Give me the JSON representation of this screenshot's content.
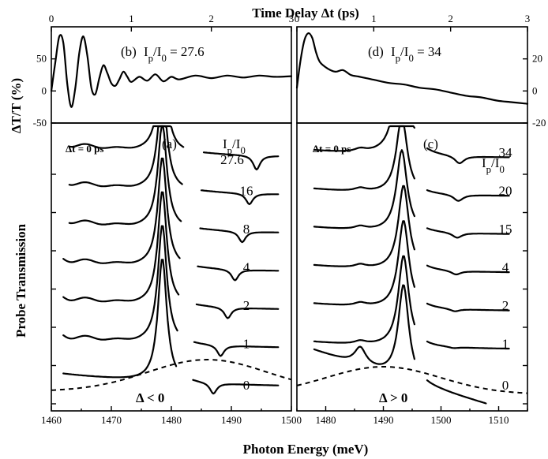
{
  "chart_data": [
    {
      "id": "b",
      "type": "line",
      "panel_label": "(b)",
      "annotation": "I_p/I_0 = 27.6",
      "xlabel": "Time Delay Δt (ps)",
      "ylabel": "ΔT/T (%)",
      "xlim": [
        0,
        3
      ],
      "ylim": [
        -50,
        100
      ],
      "xticks": [
        0,
        1,
        2,
        3
      ],
      "yticks": [
        -50,
        0,
        50
      ],
      "series": [
        {
          "x": [
            0.0,
            0.05,
            0.1,
            0.15,
            0.2,
            0.25,
            0.3,
            0.35,
            0.4,
            0.45,
            0.5,
            0.55,
            0.6,
            0.65,
            0.7,
            0.75,
            0.8,
            0.85,
            0.9,
            0.95,
            1.0,
            1.1,
            1.2,
            1.3,
            1.4,
            1.5,
            1.6,
            1.8,
            2.0,
            2.2,
            2.4,
            2.6,
            2.8,
            3.0
          ],
          "y": [
            0,
            45,
            85,
            75,
            10,
            -25,
            5,
            60,
            85,
            55,
            5,
            -5,
            20,
            40,
            28,
            12,
            8,
            18,
            30,
            22,
            14,
            22,
            16,
            26,
            15,
            22,
            18,
            24,
            20,
            24,
            21,
            24,
            22,
            23
          ]
        }
      ]
    },
    {
      "id": "d",
      "type": "line",
      "panel_label": "(d)",
      "annotation": "I_p/I_0 = 34",
      "xlabel": "Time Delay Δt (ps)",
      "xlim": [
        0,
        3
      ],
      "ylim": [
        -20,
        40
      ],
      "xticks": [
        0,
        1,
        2,
        3
      ],
      "yticks": [
        -20,
        0,
        20
      ],
      "series": [
        {
          "x": [
            0.0,
            0.05,
            0.1,
            0.15,
            0.2,
            0.25,
            0.3,
            0.4,
            0.5,
            0.6,
            0.7,
            0.8,
            0.9,
            1.0,
            1.2,
            1.4,
            1.6,
            1.8,
            2.0,
            2.2,
            2.4,
            2.6,
            2.8,
            3.0
          ],
          "y": [
            2,
            20,
            32,
            36,
            33,
            24,
            18,
            14,
            12,
            13,
            10,
            9,
            8,
            7,
            5,
            4,
            2,
            1,
            -1,
            -3,
            -4,
            -6,
            -7,
            -8
          ]
        }
      ]
    },
    {
      "id": "a",
      "type": "line",
      "panel_label": "(a)",
      "annotation": "Δt = 0 ps",
      "regime": "Δ < 0",
      "legend_title": "I_p/I_0",
      "xlabel": "Photon Energy (meV)",
      "ylabel": "Probe Transmission",
      "xlim": [
        1460,
        1500
      ],
      "xticks": [
        1460,
        1470,
        1480,
        1490,
        1500
      ],
      "series": [
        {
          "name": "0",
          "offset": 0
        },
        {
          "name": "1",
          "offset": 1
        },
        {
          "name": "2",
          "offset": 2
        },
        {
          "name": "4",
          "offset": 3
        },
        {
          "name": "8",
          "offset": 4
        },
        {
          "name": "16",
          "offset": 5
        },
        {
          "name": "27.6",
          "offset": 6
        }
      ]
    },
    {
      "id": "c",
      "type": "line",
      "panel_label": "(c)",
      "annotation": "Δt = 0 ps",
      "regime": "Δ > 0",
      "legend_title": "I_p/I_0",
      "xlabel": "Photon Energy (meV)",
      "xlim": [
        1475,
        1515
      ],
      "xticks": [
        1480,
        1490,
        1500,
        1510
      ],
      "series": [
        {
          "name": "0",
          "offset": 0
        },
        {
          "name": "1",
          "offset": 1
        },
        {
          "name": "2",
          "offset": 2
        },
        {
          "name": "4",
          "offset": 3
        },
        {
          "name": "15",
          "offset": 4
        },
        {
          "name": "20",
          "offset": 5
        },
        {
          "name": "34",
          "offset": 6
        }
      ]
    }
  ],
  "labels": {
    "top_axis_title": "Time Delay Δt (ps)",
    "bottom_axis_title": "Photon Energy (meV)",
    "left_top_axis_title": "ΔT/T (%)",
    "left_bottom_axis_title": "Probe Transmission"
  }
}
